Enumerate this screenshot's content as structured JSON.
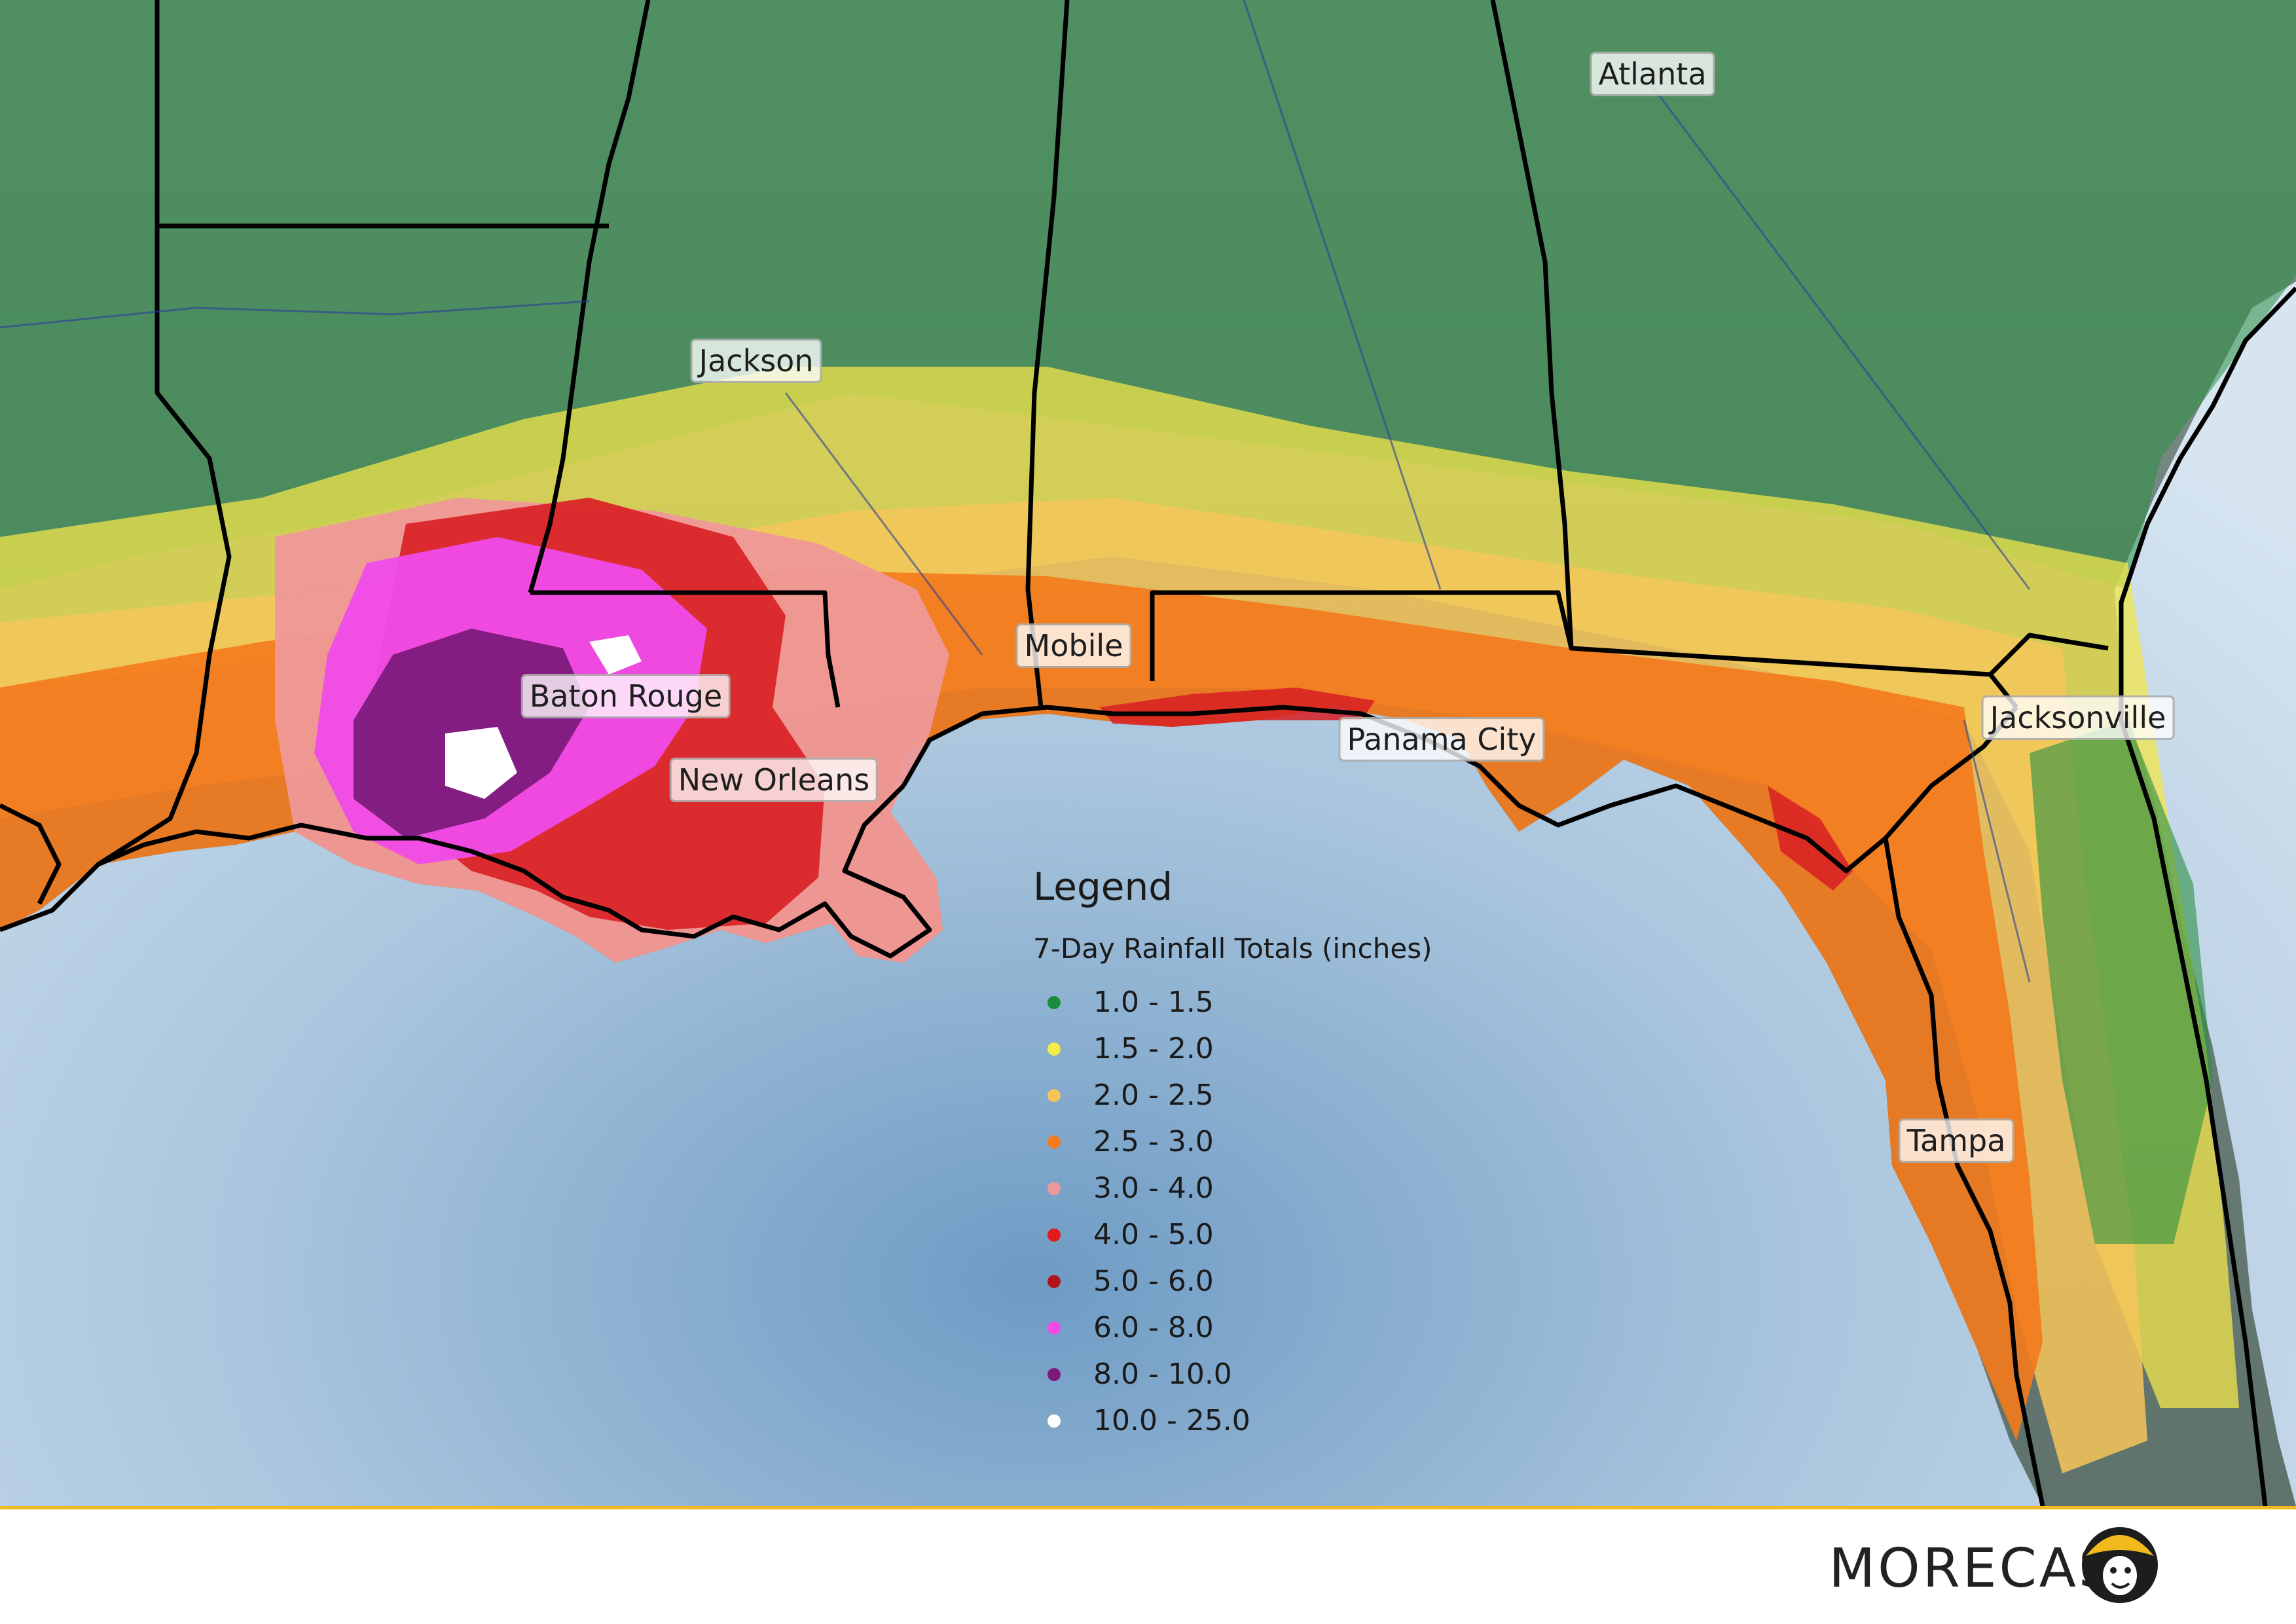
{
  "map": {
    "cities": [
      {
        "name": "Atlanta",
        "id": "atlanta"
      },
      {
        "name": "Jackson",
        "id": "jackson"
      },
      {
        "name": "Mobile",
        "id": "mobile"
      },
      {
        "name": "Baton Rouge",
        "id": "baton-rouge"
      },
      {
        "name": "New Orleans",
        "id": "new-orleans"
      },
      {
        "name": "Panama City",
        "id": "panama-city"
      },
      {
        "name": "Jacksonville",
        "id": "jacksonville"
      },
      {
        "name": "Tampa",
        "id": "tampa"
      }
    ],
    "colors": {
      "ocean_light": "#d2e2ef",
      "ocean_dark": "#6d9ac3",
      "land_base": "#778a84",
      "state_border": "#000000"
    }
  },
  "legend": {
    "title": "Legend",
    "subtitle": "7-Day Rainfall Totals (inches)",
    "items": [
      {
        "label": " 1.0 - 1.5",
        "color": "#1a8c3c"
      },
      {
        "label": "1.5 - 2.0",
        "color": "#f2ee48"
      },
      {
        "label": "2.0 - 2.5",
        "color": "#f6c559"
      },
      {
        "label": "2.5 - 3.0",
        "color": "#f47a1c"
      },
      {
        "label": "3.0 - 4.0",
        "color": "#ee9898"
      },
      {
        "label": "4.0 - 5.0",
        "color": "#e41a1c"
      },
      {
        "label": "5.0 - 6.0",
        "color": "#b0141d"
      },
      {
        "label": "6.0 - 8.0",
        "color": "#f04be9"
      },
      {
        "label": "8.0 - 10.0",
        "color": "#7c1b7c"
      },
      {
        "label": "10.0 - 25.0",
        "color": "#ffffff"
      }
    ]
  },
  "brand": {
    "name": "MORECAST",
    "accent": "#f0b91e"
  }
}
